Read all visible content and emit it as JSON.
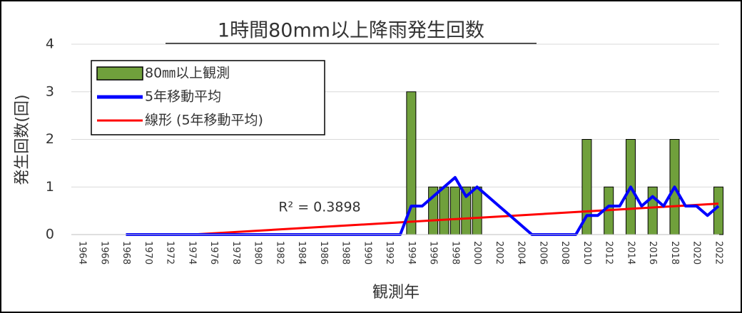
{
  "chart_data": {
    "type": "bar",
    "title": "1時間80mm以上降雨発生回数",
    "y_label": "発生回数(回)",
    "x_label": "観測年",
    "annotation": "R² = 0.3898",
    "categories": [
      "1964",
      null,
      "1966",
      null,
      "1968",
      null,
      "1970",
      null,
      "1972",
      null,
      "1974",
      null,
      "1976",
      null,
      "1978",
      null,
      "1980",
      null,
      "1982",
      null,
      "1984",
      null,
      "1986",
      null,
      "1988",
      null,
      "1990",
      null,
      "1992",
      null,
      "1994",
      null,
      "1996",
      null,
      "1998",
      null,
      "2000",
      null,
      "2002",
      null,
      "2004",
      null,
      "2006",
      null,
      "2008",
      null,
      "2010",
      null,
      "2012",
      null,
      "2014",
      null,
      "2016",
      null,
      "2018",
      null,
      "2020",
      null,
      "2022"
    ],
    "series": [
      {
        "name": "80㎜以上観測",
        "type": "bar",
        "color": "#70a03c",
        "values": [
          0,
          0,
          0,
          0,
          0,
          0,
          0,
          0,
          0,
          0,
          0,
          0,
          0,
          0,
          0,
          0,
          0,
          0,
          0,
          0,
          0,
          0,
          0,
          0,
          0,
          0,
          0,
          0,
          0,
          0,
          3,
          0,
          1,
          1,
          1,
          1,
          1,
          0,
          0,
          0,
          0,
          0,
          0,
          0,
          0,
          0,
          2,
          0,
          1,
          0,
          2,
          0,
          1,
          0,
          2,
          0,
          0,
          0,
          1
        ]
      },
      {
        "name": "5年移動平均",
        "type": "line",
        "color": "#0000ff",
        "values": [
          null,
          null,
          null,
          null,
          0,
          0,
          0,
          0,
          0,
          0,
          0,
          0,
          0,
          0,
          0,
          0,
          0,
          0,
          0,
          0,
          0,
          0,
          0,
          0,
          0,
          0,
          0,
          0,
          0,
          0,
          0.6,
          0.6,
          0.8,
          1.0,
          1.2,
          0.8,
          1.0,
          0.8,
          0.6,
          0.4,
          0.2,
          0,
          0,
          0,
          0,
          0,
          0.4,
          0.4,
          0.6,
          0.6,
          1.0,
          0.6,
          0.8,
          0.6,
          1.0,
          0.6,
          0.6,
          0.4,
          0.6
        ]
      },
      {
        "name": "線形 (5年移動平均)",
        "type": "trend",
        "color": "#ff0000",
        "x": [
          "1974",
          "2022"
        ],
        "values": [
          0,
          0.65
        ]
      }
    ],
    "ylim": [
      0,
      4
    ],
    "yticks": [
      0,
      1,
      2,
      3,
      4
    ],
    "grid": true,
    "legend": "upper left"
  }
}
